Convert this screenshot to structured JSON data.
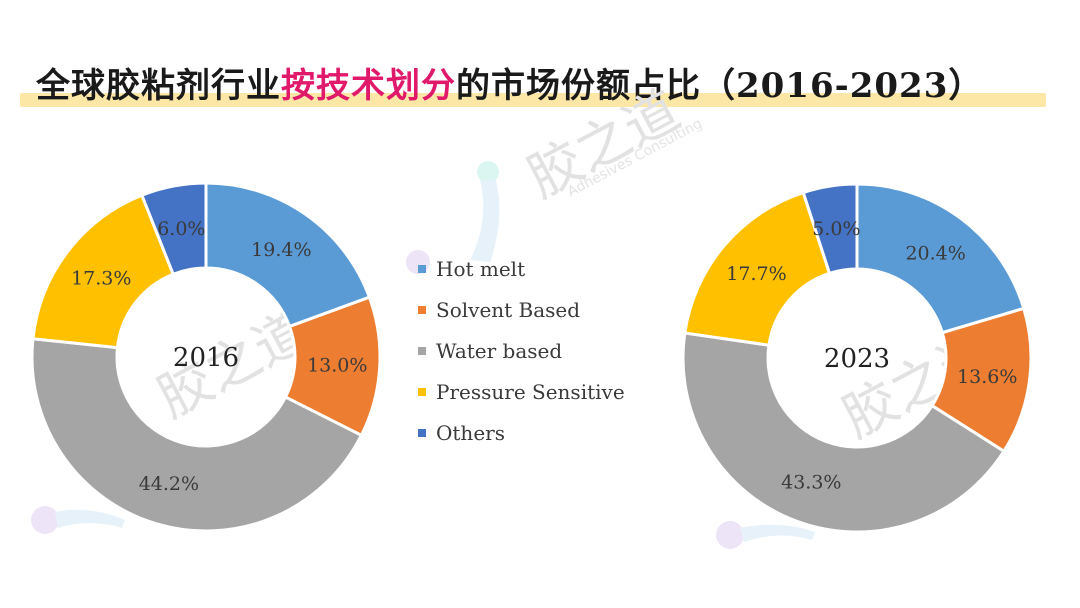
{
  "title": {
    "part1": "全球胶粘剂行业",
    "highlight": "按技术划分",
    "part2": "的市场份额占比（2016-2023）"
  },
  "watermark": {
    "logo_text": "胶之道",
    "sub_text": "Adhesives Consulting"
  },
  "colors": {
    "hot_melt": "#5b9bd5",
    "solvent_based": "#ed7d31",
    "water_based": "#a5a5a5",
    "pressure_sensitive": "#ffc000",
    "others": "#4472c4",
    "title_highlight": "#e0196b",
    "title_underline": "#fde7a6"
  },
  "chart_data": [
    {
      "type": "pie",
      "variant": "donut",
      "center_label": "2016",
      "categories": [
        "Hot melt",
        "Solvent Based",
        "Water based",
        "Pressure Sensitive",
        "Others"
      ],
      "values": [
        19.4,
        13.0,
        44.2,
        17.3,
        6.0
      ],
      "labels": [
        "19.4%",
        "13.0%",
        "44.2%",
        "17.3%",
        "6.0%"
      ],
      "legend_position": "center"
    },
    {
      "type": "pie",
      "variant": "donut",
      "center_label": "2023",
      "categories": [
        "Hot melt",
        "Solvent Based",
        "Water based",
        "Pressure Sensitive",
        "Others"
      ],
      "values": [
        20.4,
        13.6,
        43.3,
        17.7,
        5.0
      ],
      "labels": [
        "20.4%",
        "13.6%",
        "43.3%",
        "17.7%",
        "5.0%"
      ],
      "legend_position": "center"
    }
  ],
  "legend": [
    {
      "label": "Hot melt",
      "color": "#5b9bd5"
    },
    {
      "label": "Solvent Based",
      "color": "#ed7d31"
    },
    {
      "label": "Water based",
      "color": "#a5a5a5"
    },
    {
      "label": "Pressure Sensitive",
      "color": "#ffc000"
    },
    {
      "label": "Others",
      "color": "#4472c4"
    }
  ]
}
